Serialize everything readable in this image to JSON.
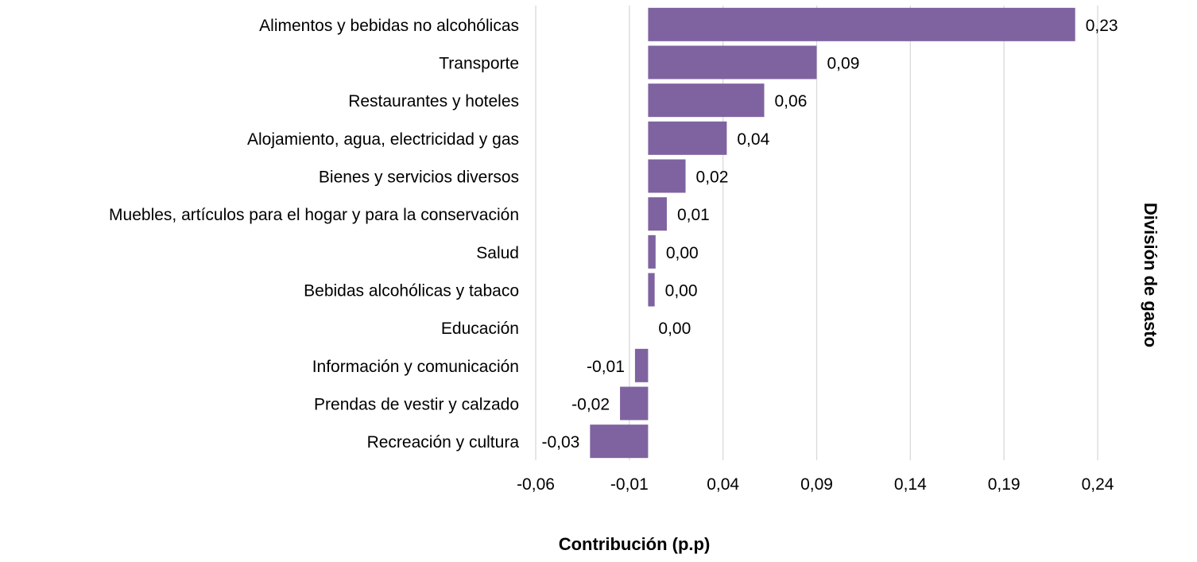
{
  "chart_data": {
    "type": "bar",
    "orientation": "horizontal",
    "categories": [
      "Alimentos y bebidas no alcohólicas",
      "Transporte",
      "Restaurantes y hoteles",
      "Alojamiento, agua, electricidad y gas",
      "Bienes y servicios diversos",
      "Muebles, artículos para el hogar y para la conservación",
      "Salud",
      "Bebidas alcohólicas y tabaco",
      "Educación",
      "Información y comunicación",
      "Prendas de vestir y calzado",
      "Recreación y cultura"
    ],
    "values": [
      0.228,
      0.09,
      0.062,
      0.042,
      0.02,
      0.01,
      0.004,
      0.0035,
      0.0,
      -0.007,
      -0.015,
      -0.031
    ],
    "data_labels": [
      "0,23",
      "0,09",
      "0,06",
      "0,04",
      "0,02",
      "0,01",
      "0,00",
      "0,00",
      "0,00",
      "-0,01",
      "-0,02",
      "-0,03"
    ],
    "xlabel": "Contribución (p.p)",
    "ylabel": "División de gasto",
    "xlim": [
      -0.06,
      0.24
    ],
    "x_ticks": [
      -0.06,
      -0.01,
      0.04,
      0.09,
      0.14,
      0.19,
      0.24
    ],
    "x_tick_labels": [
      "-0,06",
      "-0,01",
      "0,04",
      "0,09",
      "0,14",
      "0,19",
      "0,24"
    ],
    "grid": "vertical",
    "legend": "none",
    "bar_color": "#7f63a0",
    "grid_color": "#d9d9d9"
  }
}
